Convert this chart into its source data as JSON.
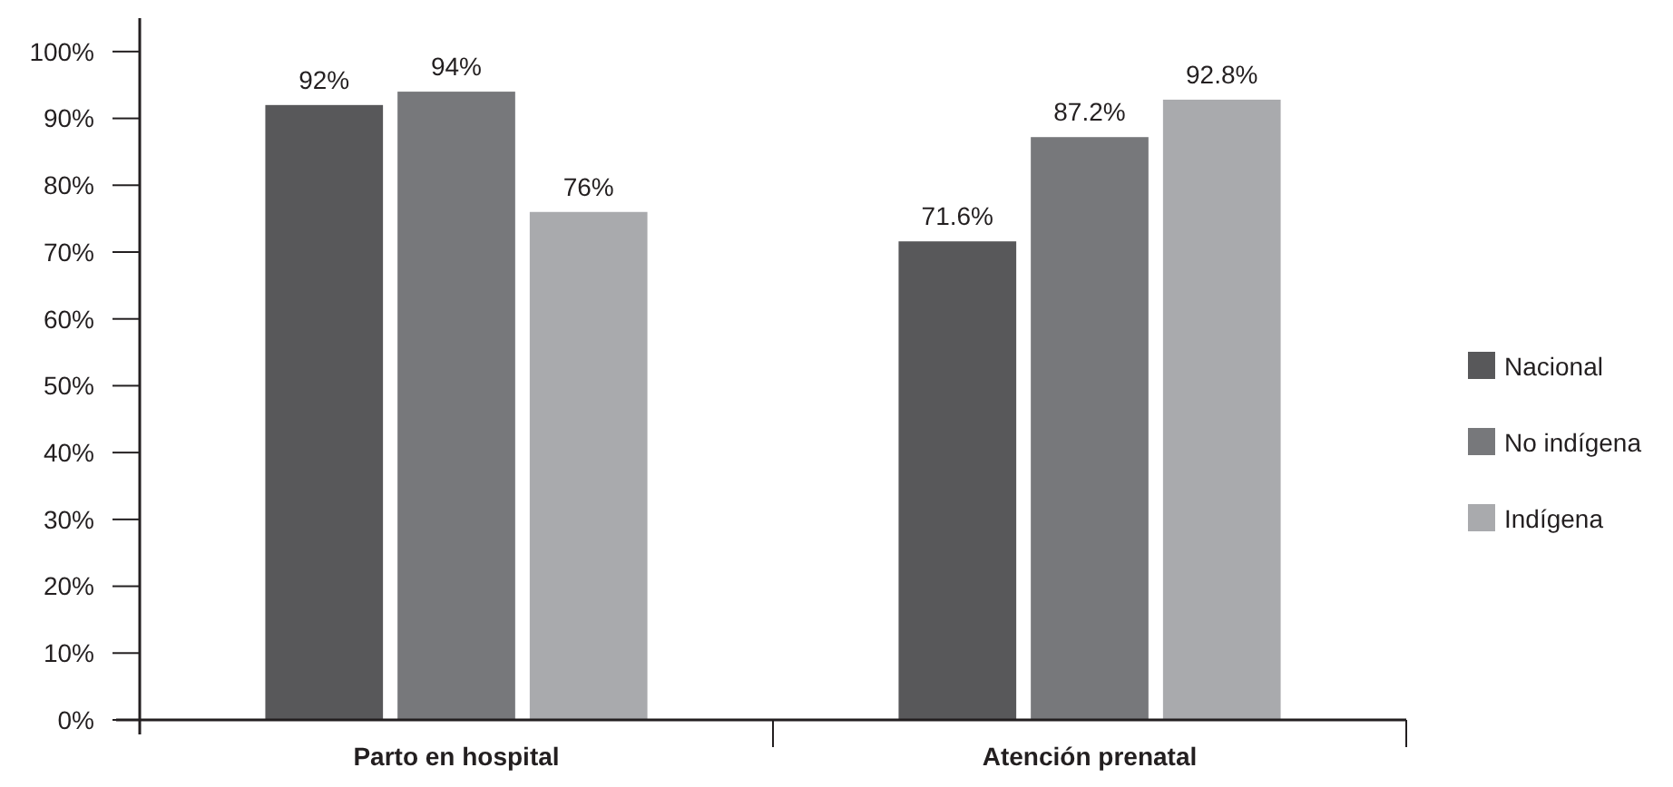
{
  "chart_data": {
    "type": "bar",
    "categories": [
      "Parto en hospital",
      "Atención prenatal"
    ],
    "series": [
      {
        "name": "Nacional",
        "color": "#58585a",
        "values": [
          92,
          71.6
        ],
        "value_labels": [
          "92%",
          "71.6%"
        ]
      },
      {
        "name": "No indígena",
        "color": "#77787b",
        "values": [
          94,
          87.2
        ],
        "value_labels": [
          "94%",
          "87.2%"
        ]
      },
      {
        "name": "Indígena",
        "color": "#a9aaad",
        "values": [
          76,
          92.8
        ],
        "value_labels": [
          "76%",
          "92.8%"
        ]
      }
    ],
    "ylim": [
      0,
      105
    ],
    "yticks": [
      {
        "value": 0,
        "label": "0%"
      },
      {
        "value": 10,
        "label": "10%"
      },
      {
        "value": 20,
        "label": "20%"
      },
      {
        "value": 30,
        "label": "30%"
      },
      {
        "value": 40,
        "label": "40%"
      },
      {
        "value": 50,
        "label": "50%"
      },
      {
        "value": 60,
        "label": "60%"
      },
      {
        "value": 70,
        "label": "70%"
      },
      {
        "value": 80,
        "label": "80%"
      },
      {
        "value": 90,
        "label": "90%"
      },
      {
        "value": 100,
        "label": "100%"
      }
    ],
    "grid": false,
    "legend": "right"
  }
}
